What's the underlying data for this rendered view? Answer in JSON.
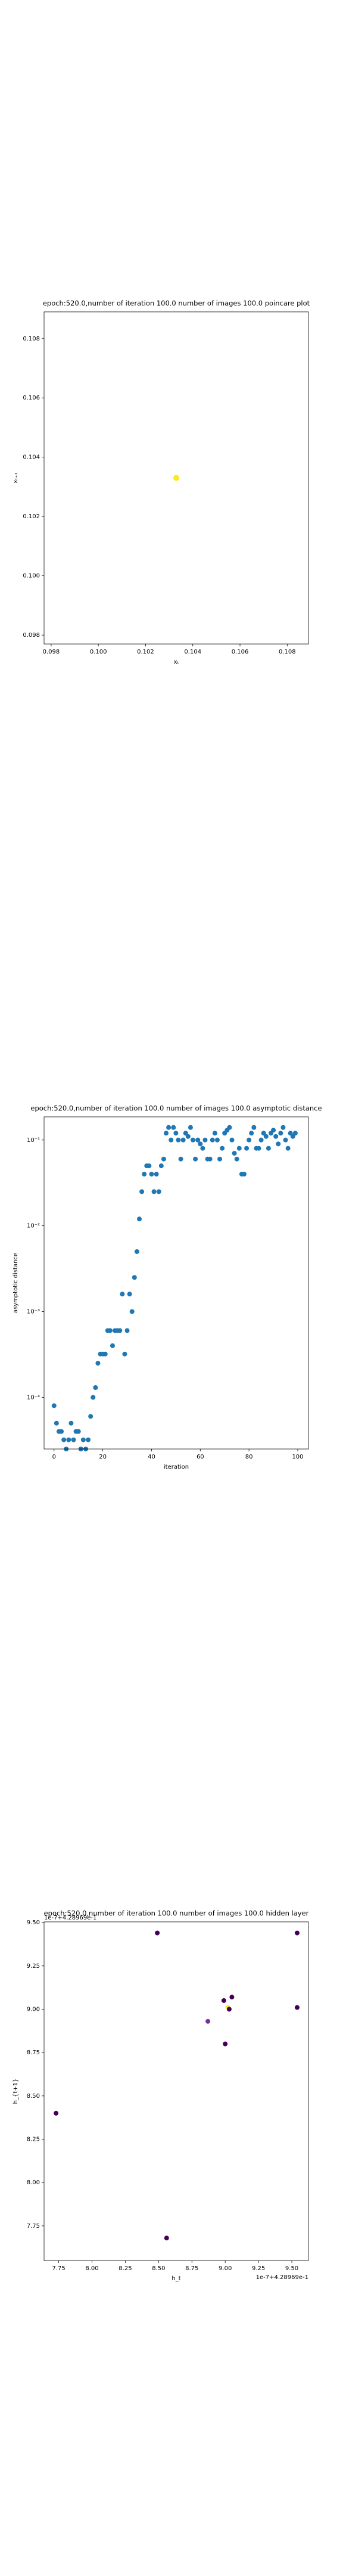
{
  "chart_data": [
    {
      "type": "scatter",
      "title": "epoch:520.0,number of iteration 100.0 number of images 100.0 poincare plot",
      "xlabel": "xₜ",
      "ylabel": "xₜ₊₁",
      "xlim": [
        0.0977,
        0.1089
      ],
      "ylim": [
        0.0977,
        0.1089
      ],
      "xticks": [
        0.098,
        {
          "value": 0.1,
          "label": "0.100"
        },
        0.102,
        0.104,
        0.106,
        0.108
      ],
      "yticks": [
        0.098,
        {
          "value": 0.1,
          "label": "0.100"
        },
        0.102,
        0.104,
        0.106,
        0.108
      ],
      "series": [
        {
          "x": [
            0.1033
          ],
          "values": [
            0.1033
          ],
          "color": "#fde725"
        }
      ]
    },
    {
      "type": "scatter",
      "title": "epoch:520.0,number of iteration 100.0  number of images 100.0 asymptotic distance",
      "xlabel": "iteration",
      "ylabel": "asymptotic distance",
      "yscale": "log",
      "xlim": [
        -4.1,
        104.4
      ],
      "ylim": [
        2.5e-05,
        0.186
      ],
      "xticks": [
        0,
        20,
        40,
        60,
        80,
        100
      ],
      "yticks": [
        {
          "value": 0.0001,
          "label": "10⁻⁴"
        },
        {
          "value": 0.001,
          "label": "10⁻³"
        },
        {
          "value": 0.01,
          "label": "10⁻²"
        },
        {
          "value": 0.1,
          "label": "10⁻¹"
        }
      ],
      "series": [
        {
          "color": "#1f77b4",
          "x": [
            0,
            1,
            2,
            3,
            4,
            5,
            6,
            7,
            8,
            9,
            10,
            11,
            12,
            13,
            14,
            15,
            16,
            17,
            18,
            19,
            20,
            21,
            22,
            23,
            24,
            25,
            26,
            27,
            28,
            29,
            30,
            31,
            32,
            33,
            34,
            35,
            36,
            37,
            38,
            39,
            40,
            41,
            42,
            43,
            44,
            45,
            46,
            47,
            48,
            49,
            50,
            51,
            52,
            53,
            54,
            55,
            56,
            57,
            58,
            59,
            60,
            61,
            62,
            63,
            64,
            65,
            66,
            67,
            68,
            69,
            70,
            71,
            72,
            73,
            74,
            75,
            76,
            77,
            78,
            79,
            80,
            81,
            82,
            83,
            84,
            85,
            86,
            87,
            88,
            89,
            90,
            91,
            92,
            93,
            94,
            95,
            96,
            97,
            98,
            99
          ],
          "values": [
            8e-05,
            5e-05,
            4e-05,
            4e-05,
            3.2e-05,
            2.5e-05,
            3.2e-05,
            5e-05,
            3.2e-05,
            4e-05,
            4e-05,
            2.5e-05,
            3.2e-05,
            2.5e-05,
            3.2e-05,
            6e-05,
            0.0001,
            0.00013,
            0.00025,
            0.00032,
            0.00032,
            0.00032,
            0.0006,
            0.0006,
            0.0004,
            0.0006,
            0.0006,
            0.0006,
            0.0016,
            0.00032,
            0.0006,
            0.0016,
            0.001,
            0.0025,
            0.005,
            0.012,
            0.025,
            0.04,
            0.05,
            0.05,
            0.04,
            0.025,
            0.04,
            0.025,
            0.05,
            0.06,
            0.12,
            0.14,
            0.1,
            0.14,
            0.12,
            0.1,
            0.06,
            0.1,
            0.12,
            0.11,
            0.14,
            0.1,
            0.06,
            0.1,
            0.09,
            0.08,
            0.1,
            0.06,
            0.06,
            0.1,
            0.12,
            0.1,
            0.06,
            0.08,
            0.12,
            0.13,
            0.14,
            0.1,
            0.07,
            0.06,
            0.08,
            0.04,
            0.04,
            0.08,
            0.1,
            0.12,
            0.14,
            0.08,
            0.08,
            0.1,
            0.12,
            0.11,
            0.08,
            0.12,
            0.13,
            0.11,
            0.09,
            0.12,
            0.14,
            0.1,
            0.08,
            0.12,
            0.11,
            0.12
          ]
        }
      ]
    },
    {
      "type": "scatter",
      "title": "epoch:520.0,number of iteration 100.0  number of images 100.0 hidden layer",
      "xlabel": "h_t",
      "ylabel": "h_{t+1}",
      "x_offset_text": "1e-7+4.28969e-1",
      "y_offset_text": "1e-7+4.28969e-1",
      "xlim": [
        7.64,
        9.625
      ],
      "ylim": [
        7.55,
        9.504
      ],
      "xticks": [
        7.75,
        {
          "value": 8,
          "label": "8.00"
        },
        8.25,
        {
          "value": 8.5,
          "label": "8.50"
        },
        8.75,
        {
          "value": 9,
          "label": "9.00"
        },
        9.25,
        {
          "value": 9.5,
          "label": "9.50"
        }
      ],
      "yticks": [
        7.75,
        {
          "value": 8,
          "label": "8.00"
        },
        8.25,
        {
          "value": 8.5,
          "label": "8.50"
        },
        8.75,
        {
          "value": 9,
          "label": "9.00"
        },
        9.25,
        {
          "value": 9.5,
          "label": "9.50"
        }
      ],
      "series": [
        {
          "x": [
            7.73,
            8.49,
            8.56,
            8.87,
            8.99,
            9.02,
            9.03,
            9.0,
            9.05,
            9.54,
            9.54
          ],
          "values": [
            8.4,
            9.44,
            7.68,
            8.93,
            9.05,
            9.01,
            9.0,
            8.8,
            9.07,
            9.44,
            9.01
          ],
          "colors": [
            "#440154",
            "#440154",
            "#440154",
            "#7e3194",
            "#440154",
            "#fde725",
            "#440154",
            "#440154",
            "#440154",
            "#440154",
            "#440154"
          ]
        }
      ]
    }
  ]
}
